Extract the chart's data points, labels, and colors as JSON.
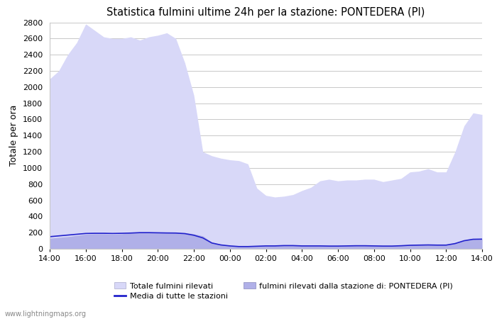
{
  "title": "Statistica fulmini ultime 24h per la stazione: PONTEDERA (PI)",
  "ylabel": "Totale per ora",
  "watermark": "www.lightningmaps.org",
  "xlim": [
    0,
    24
  ],
  "ylim": [
    0,
    2800
  ],
  "yticks": [
    0,
    200,
    400,
    600,
    800,
    1000,
    1200,
    1400,
    1600,
    1800,
    2000,
    2200,
    2400,
    2600,
    2800
  ],
  "xtick_labels": [
    "14:00",
    "16:00",
    "18:00",
    "20:00",
    "22:00",
    "00:00",
    "02:00",
    "04:00",
    "06:00",
    "08:00",
    "10:00",
    "12:00",
    "14:00"
  ],
  "xtick_positions": [
    0,
    2,
    4,
    6,
    8,
    10,
    12,
    14,
    16,
    18,
    20,
    22,
    24
  ],
  "bg_color": "#ffffff",
  "grid_color": "#c8c8c8",
  "fill_total_color": "#d8d8f8",
  "fill_station_color": "#b0b0e8",
  "line_media_color": "#2222cc",
  "legend_label_total": "Totale fulmini rilevati",
  "legend_label_station": "fulmini rilevati dalla stazione di: PONTEDERA (PI)",
  "legend_label_media": "Media di tutte le stazioni",
  "x": [
    0,
    0.5,
    1.0,
    1.5,
    2.0,
    2.5,
    3.0,
    3.5,
    4.0,
    4.5,
    5.0,
    5.5,
    6.0,
    6.5,
    7.0,
    7.5,
    8.0,
    8.5,
    9.0,
    9.5,
    10.0,
    10.5,
    11.0,
    11.5,
    12.0,
    12.5,
    13.0,
    13.5,
    14.0,
    14.5,
    15.0,
    15.5,
    16.0,
    16.5,
    17.0,
    17.5,
    18.0,
    18.5,
    19.0,
    19.5,
    20.0,
    20.5,
    21.0,
    21.5,
    22.0,
    22.5,
    23.0,
    23.5,
    24.0
  ],
  "y_total": [
    2100,
    2200,
    2400,
    2550,
    2780,
    2700,
    2620,
    2600,
    2600,
    2620,
    2580,
    2620,
    2640,
    2670,
    2600,
    2300,
    1900,
    1200,
    1150,
    1120,
    1100,
    1090,
    1050,
    750,
    660,
    640,
    650,
    670,
    720,
    760,
    840,
    860,
    840,
    850,
    850,
    860,
    860,
    830,
    850,
    870,
    950,
    960,
    990,
    950,
    950,
    1200,
    1520,
    1680,
    1660
  ],
  "y_station": [
    130,
    140,
    150,
    165,
    180,
    185,
    185,
    180,
    185,
    200,
    205,
    205,
    205,
    200,
    200,
    200,
    185,
    160,
    80,
    55,
    40,
    30,
    30,
    35,
    40,
    40,
    45,
    45,
    40,
    40,
    40,
    38,
    38,
    40,
    42,
    42,
    40,
    38,
    38,
    42,
    48,
    50,
    52,
    50,
    50,
    70,
    105,
    120,
    120
  ],
  "y_media": [
    150,
    160,
    170,
    180,
    190,
    192,
    192,
    190,
    192,
    195,
    200,
    200,
    198,
    196,
    195,
    188,
    168,
    135,
    72,
    48,
    36,
    28,
    28,
    32,
    36,
    36,
    40,
    40,
    36,
    36,
    36,
    34,
    34,
    36,
    38,
    38,
    36,
    34,
    34,
    38,
    44,
    46,
    48,
    46,
    46,
    65,
    100,
    118,
    120
  ]
}
